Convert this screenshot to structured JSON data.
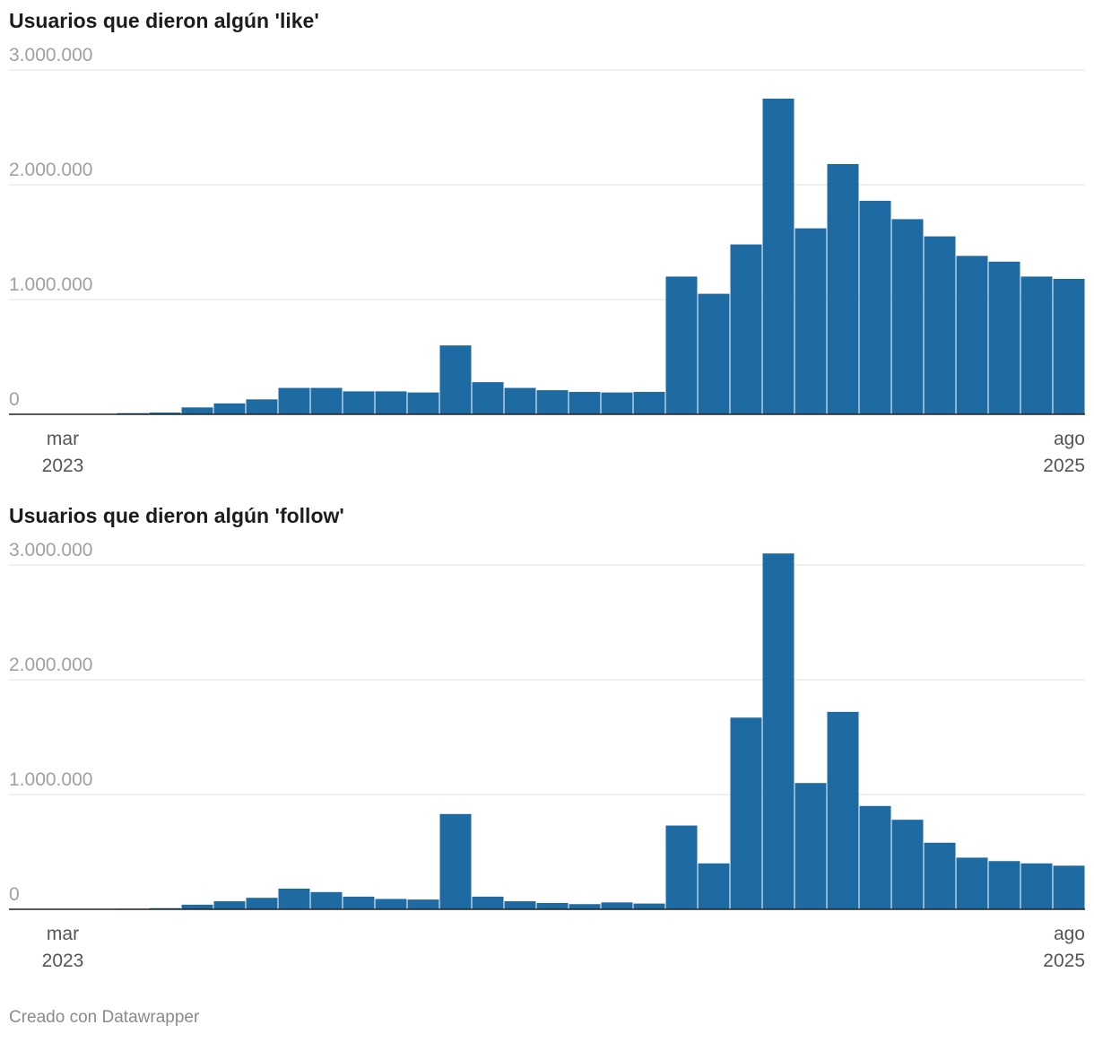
{
  "charts": [
    {
      "title": "Usuarios que dieron algún 'like'",
      "type": "bar",
      "color": "#1e6aa3",
      "y_ticks": [
        "3.000.000",
        "2.000.000",
        "1.000.000",
        "0"
      ],
      "x_ticks": [
        {
          "month": "mar",
          "year": "2023"
        },
        {
          "month": "ago",
          "year": "2025"
        }
      ]
    },
    {
      "title": "Usuarios que dieron algún 'follow'",
      "type": "bar",
      "color": "#1e6aa3",
      "y_ticks": [
        "3.000.000",
        "2.000.000",
        "1.000.000",
        "0"
      ],
      "x_ticks": [
        {
          "month": "mar",
          "year": "2023"
        },
        {
          "month": "ago",
          "year": "2025"
        }
      ]
    }
  ],
  "chart_data": [
    {
      "type": "bar",
      "title": "Usuarios que dieron algún 'like'",
      "x_start": "2023-03",
      "x_end": "2025-08",
      "ylim": [
        0,
        3000000
      ],
      "grid": true,
      "x": [
        "2023-03",
        "2023-04",
        "2023-05",
        "2023-06",
        "2023-07",
        "2023-08",
        "2023-09",
        "2023-10",
        "2023-11",
        "2023-12",
        "2024-01",
        "2024-02",
        "2024-03",
        "2024-04",
        "2024-05",
        "2024-06",
        "2024-07",
        "2024-08",
        "2024-09",
        "2024-10",
        "2024-11",
        "2024-12",
        "2025-01",
        "2025-02",
        "2025-03",
        "2025-04",
        "2025-05",
        "2025-06",
        "2025-07",
        "2025-08"
      ],
      "values": [
        10000,
        15000,
        60000,
        95000,
        130000,
        230000,
        230000,
        200000,
        200000,
        190000,
        600000,
        280000,
        230000,
        210000,
        195000,
        190000,
        195000,
        1200000,
        1050000,
        1480000,
        2750000,
        1620000,
        2180000,
        1860000,
        1700000,
        1550000,
        1380000,
        1330000,
        1200000,
        1180000
      ]
    },
    {
      "type": "bar",
      "title": "Usuarios que dieron algún 'follow'",
      "x_start": "2023-03",
      "x_end": "2025-08",
      "ylim": [
        0,
        3000000
      ],
      "grid": true,
      "x": [
        "2023-03",
        "2023-04",
        "2023-05",
        "2023-06",
        "2023-07",
        "2023-08",
        "2023-09",
        "2023-10",
        "2023-11",
        "2023-12",
        "2024-01",
        "2024-02",
        "2024-03",
        "2024-04",
        "2024-05",
        "2024-06",
        "2024-07",
        "2024-08",
        "2024-09",
        "2024-10",
        "2024-11",
        "2024-12",
        "2025-01",
        "2025-02",
        "2025-03",
        "2025-04",
        "2025-05",
        "2025-06",
        "2025-07",
        "2025-08"
      ],
      "values": [
        5000,
        10000,
        40000,
        70000,
        100000,
        180000,
        150000,
        110000,
        90000,
        85000,
        830000,
        110000,
        70000,
        55000,
        45000,
        60000,
        50000,
        730000,
        400000,
        1670000,
        3100000,
        1100000,
        1720000,
        900000,
        780000,
        580000,
        450000,
        420000,
        400000,
        380000
      ]
    }
  ],
  "footer": {
    "credit": "Creado con Datawrapper"
  }
}
